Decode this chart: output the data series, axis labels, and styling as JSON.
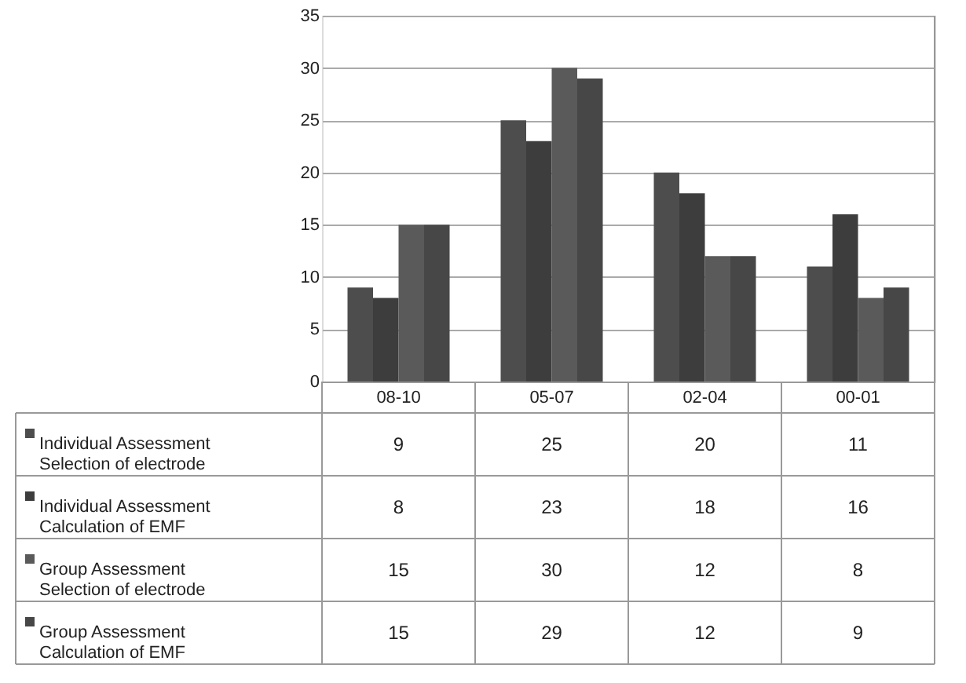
{
  "chart_data": {
    "type": "bar",
    "categories": [
      "08-10",
      "05-07",
      "02-04",
      "00-01"
    ],
    "series": [
      {
        "name": "Individual Assessment Selection of electrode",
        "color": "#4d4d4d",
        "values": [
          9,
          25,
          20,
          11
        ]
      },
      {
        "name": "Individual Assessment Calculation of EMF",
        "color": "#3d3d3d",
        "values": [
          8,
          23,
          18,
          16
        ]
      },
      {
        "name": "Group Assessment Selection of electrode",
        "color": "#5a5a5a",
        "values": [
          15,
          30,
          12,
          8
        ]
      },
      {
        "name": "Group Assessment Calculation of EMF",
        "color": "#474747",
        "values": [
          15,
          29,
          12,
          9
        ]
      }
    ],
    "ylim": [
      0,
      35
    ],
    "yticks": [
      0,
      5,
      10,
      15,
      20,
      25,
      30,
      35
    ],
    "grid": "y",
    "legend": "bottom",
    "data_labels": true
  }
}
